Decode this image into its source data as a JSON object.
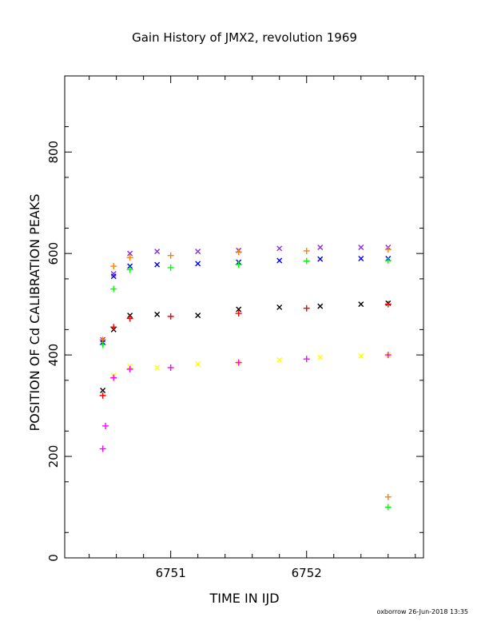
{
  "chart_data": {
    "type": "scatter",
    "title": "Gain History of JMX2, revolution 1969",
    "xlabel": "TIME IN IJD",
    "ylabel": "POSITION OF Cd CALIBRATION PEAKS",
    "xlim": [
      6750.22,
      6752.86
    ],
    "ylim": [
      0,
      950
    ],
    "xticks": [
      6751,
      6752
    ],
    "xtick_labels": [
      "6751",
      "6752"
    ],
    "yticks": [
      0,
      200,
      400,
      600,
      800
    ],
    "ytick_labels": [
      "0",
      "200",
      "400",
      "600",
      "800"
    ],
    "grid": false,
    "legend": "none",
    "series": [
      {
        "marker": "x",
        "color": "#8a2be2",
        "points": [
          [
            6750.5,
            430
          ],
          [
            6750.58,
            560
          ],
          [
            6750.7,
            600
          ],
          [
            6750.9,
            604
          ],
          [
            6751.2,
            604
          ],
          [
            6751.5,
            606
          ],
          [
            6751.8,
            610
          ],
          [
            6752.1,
            612
          ],
          [
            6752.4,
            612
          ],
          [
            6752.6,
            612
          ]
        ]
      },
      {
        "marker": "x",
        "color": "#0000ff",
        "points": [
          [
            6750.5,
            425
          ],
          [
            6750.58,
            555
          ],
          [
            6750.7,
            575
          ],
          [
            6750.9,
            578
          ],
          [
            6751.2,
            580
          ],
          [
            6751.5,
            583
          ],
          [
            6751.8,
            586
          ],
          [
            6752.1,
            589
          ],
          [
            6752.4,
            590
          ],
          [
            6752.6,
            590
          ]
        ]
      },
      {
        "marker": "x",
        "color": "#000000",
        "points": [
          [
            6750.5,
            330
          ],
          [
            6750.58,
            450
          ],
          [
            6750.7,
            478
          ],
          [
            6750.9,
            480
          ],
          [
            6751.2,
            478
          ],
          [
            6751.5,
            490
          ],
          [
            6751.8,
            494
          ],
          [
            6752.1,
            496
          ],
          [
            6752.4,
            500
          ],
          [
            6752.6,
            502
          ]
        ]
      },
      {
        "marker": "x",
        "color": "#ffff00",
        "points": [
          [
            6750.58,
            360
          ],
          [
            6750.7,
            378
          ],
          [
            6750.9,
            375
          ],
          [
            6751.2,
            382
          ],
          [
            6751.5,
            385
          ],
          [
            6751.8,
            390
          ],
          [
            6752.1,
            395
          ],
          [
            6752.4,
            398
          ],
          [
            6752.6,
            400
          ]
        ]
      },
      {
        "marker": "+",
        "color": "#ff8000",
        "points": [
          [
            6750.5,
            430
          ],
          [
            6750.58,
            575
          ],
          [
            6750.7,
            592
          ],
          [
            6751.0,
            596
          ],
          [
            6751.5,
            603
          ],
          [
            6752.0,
            605
          ],
          [
            6752.6,
            608
          ],
          [
            6752.6,
            120
          ]
        ]
      },
      {
        "marker": "+",
        "color": "#00ff00",
        "points": [
          [
            6750.5,
            420
          ],
          [
            6750.58,
            530
          ],
          [
            6750.7,
            568
          ],
          [
            6751.0,
            572
          ],
          [
            6751.5,
            578
          ],
          [
            6752.0,
            585
          ],
          [
            6752.6,
            586
          ],
          [
            6752.6,
            100
          ]
        ]
      },
      {
        "marker": "+",
        "color": "#ff0000",
        "points": [
          [
            6750.5,
            320
          ],
          [
            6750.58,
            455
          ],
          [
            6750.7,
            472
          ],
          [
            6751.0,
            476
          ],
          [
            6751.5,
            482
          ],
          [
            6752.0,
            492
          ],
          [
            6752.6,
            500
          ]
        ]
      },
      {
        "marker": "+",
        "color": "#ff00ff",
        "points": [
          [
            6750.5,
            215
          ],
          [
            6750.52,
            260
          ],
          [
            6750.58,
            355
          ],
          [
            6750.7,
            372
          ],
          [
            6751.0,
            375
          ],
          [
            6751.5,
            385
          ],
          [
            6752.0,
            392
          ],
          [
            6752.6,
            400
          ]
        ]
      }
    ]
  },
  "footer": {
    "credit": "oxborrow 26-Jun-2018 13:35"
  }
}
